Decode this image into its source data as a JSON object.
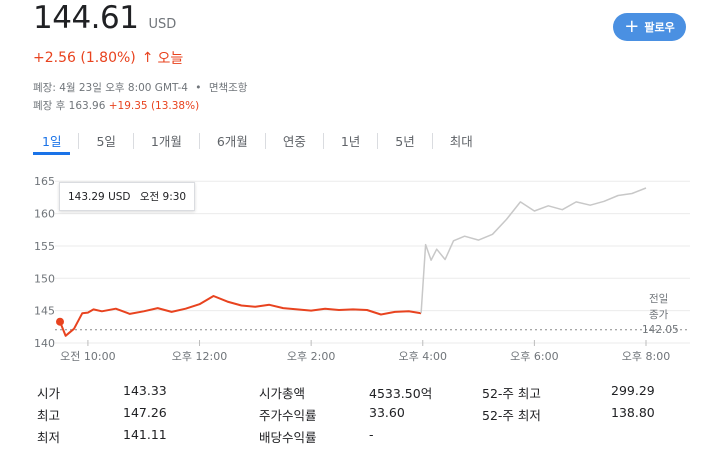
{
  "price": {
    "value": "144.61",
    "currency": "USD"
  },
  "change": {
    "text": "+2.56 (1.80%)",
    "arrow": "↑",
    "period": "오늘"
  },
  "meta": {
    "closed_text": "폐장: 4월 23일 오후 8:00 GMT-4",
    "bullet": "•",
    "disclaimer": "면책조항",
    "after_hours_label": "폐장 후 163.96",
    "after_hours_change": "+19.35 (13.38%)"
  },
  "follow": {
    "label": "팔로우",
    "icon": "plus-icon"
  },
  "tabs": [
    "1일",
    "5일",
    "1개월",
    "6개월",
    "연중",
    "1년",
    "5년",
    "최대"
  ],
  "active_tab": 0,
  "tooltip": {
    "price": "143.29 USD",
    "time": "오전 9:30"
  },
  "prev_close": {
    "line1": "전일",
    "line2": "종가",
    "value": "142.05"
  },
  "colors": {
    "regular": "#e8431f",
    "after_hours": "#c8c8c8",
    "accent": "#1a73e8",
    "button": "#4a90e2"
  },
  "chart_data": {
    "type": "line",
    "y_ticks": [
      "165",
      "160",
      "155",
      "150",
      "145",
      "140"
    ],
    "ylim": [
      140,
      165.5
    ],
    "x_ticks": [
      "오전 10:00",
      "오후 12:00",
      "오후 2:00",
      "오후 4:00",
      "오후 6:00",
      "오후 8:00"
    ],
    "x_tick_hours": [
      10,
      12,
      14,
      16,
      18,
      20
    ],
    "xlim": [
      9.5,
      20.0
    ],
    "prev_close": 142.05,
    "series": [
      {
        "session": "regular",
        "x": [
          9.5,
          9.6,
          9.75,
          9.9,
          10.0,
          10.1,
          10.25,
          10.5,
          10.75,
          11.0,
          11.25,
          11.5,
          11.75,
          12.0,
          12.25,
          12.5,
          12.75,
          13.0,
          13.25,
          13.5,
          13.75,
          14.0,
          14.25,
          14.5,
          14.75,
          15.0,
          15.25,
          15.5,
          15.75,
          15.97
        ],
        "y": [
          143.29,
          141.11,
          142.2,
          144.6,
          144.7,
          145.2,
          144.9,
          145.3,
          144.5,
          144.9,
          145.4,
          144.8,
          145.3,
          146.0,
          147.26,
          146.4,
          145.8,
          145.6,
          145.9,
          145.4,
          145.2,
          145.0,
          145.3,
          145.1,
          145.2,
          145.1,
          144.4,
          144.8,
          144.9,
          144.61
        ]
      },
      {
        "session": "after-hours",
        "x": [
          15.97,
          16.05,
          16.15,
          16.25,
          16.4,
          16.55,
          16.75,
          17.0,
          17.25,
          17.5,
          17.75,
          18.0,
          18.25,
          18.5,
          18.75,
          19.0,
          19.25,
          19.5,
          19.75,
          20.0
        ],
        "y": [
          144.61,
          155.2,
          152.8,
          154.5,
          152.9,
          155.8,
          156.5,
          155.9,
          156.8,
          159.1,
          161.8,
          160.4,
          161.2,
          160.6,
          161.8,
          161.3,
          161.9,
          162.8,
          163.1,
          163.96
        ]
      }
    ]
  },
  "stats": [
    [
      "시가",
      "143.33",
      "시가총액",
      "4533.50억",
      "52-주 최고",
      "299.29"
    ],
    [
      "최고",
      "147.26",
      "주가수익률",
      "33.60",
      "52-주 최저",
      "138.80"
    ],
    [
      "최저",
      "141.11",
      "배당수익률",
      "-",
      "",
      ""
    ]
  ]
}
